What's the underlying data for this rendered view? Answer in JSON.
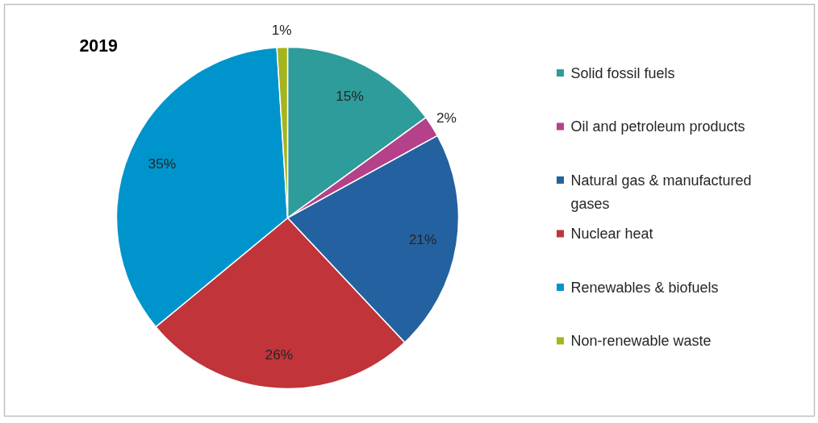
{
  "chart_data": {
    "type": "pie",
    "title": "2019",
    "categories": [
      "Solid fossil fuels",
      "Oil and petroleum products",
      "Natural gas & manufactured gases",
      "Nuclear heat",
      "Renewables & biofuels",
      "Non-renewable waste"
    ],
    "values": [
      15,
      2,
      21,
      26,
      35,
      1
    ],
    "colors": [
      "#2e9c9a",
      "#b5418a",
      "#2461a0",
      "#c0343a",
      "#0094cc",
      "#a6b51e"
    ],
    "value_labels": [
      "15%",
      "2%",
      "21%",
      "26%",
      "35%",
      "1%"
    ],
    "legend": "right"
  }
}
